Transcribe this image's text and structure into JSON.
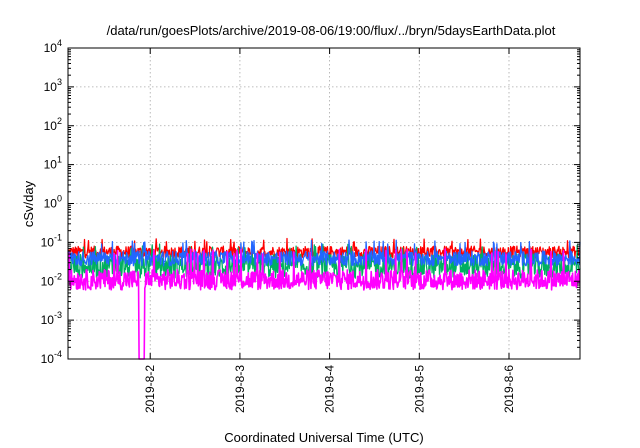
{
  "chart_data": {
    "type": "line",
    "title": "/data/run/goesPlots/archive/2019-08-06/19:00/flux/../bryn/5daysEarthData.plot",
    "xlabel": "Coordinated Universal Time (UTC)",
    "ylabel": "cSv/day",
    "yscale": "log",
    "ylim": [
      0.0001,
      10000
    ],
    "xlim": [
      "2019-08-01T02:00",
      "2019-08-06T19:00"
    ],
    "grid": true,
    "legend": "none",
    "y_ticks": [
      {
        "base": "10",
        "exp": "-4",
        "value": 0.0001
      },
      {
        "base": "10",
        "exp": "-3",
        "value": 0.001
      },
      {
        "base": "10",
        "exp": "-2",
        "value": 0.01
      },
      {
        "base": "10",
        "exp": "-1",
        "value": 0.1
      },
      {
        "base": "10",
        "exp": "0",
        "value": 1
      },
      {
        "base": "10",
        "exp": "1",
        "value": 10
      },
      {
        "base": "10",
        "exp": "2",
        "value": 100
      },
      {
        "base": "10",
        "exp": "3",
        "value": 1000
      },
      {
        "base": "10",
        "exp": "4",
        "value": 10000
      }
    ],
    "x_ticks": [
      {
        "label": "2019-8-2",
        "value": "2019-08-02T00:00"
      },
      {
        "label": "2019-8-3",
        "value": "2019-08-03T00:00"
      },
      {
        "label": "2019-8-4",
        "value": "2019-08-04T00:00"
      },
      {
        "label": "2019-8-5",
        "value": "2019-08-05T00:00"
      },
      {
        "label": "2019-8-6",
        "value": "2019-08-06T00:00"
      }
    ],
    "series": [
      {
        "color": "#ff0000",
        "band": [
          0.04,
          0.08
        ],
        "spike_max": 0.1
      },
      {
        "color": "#00b060",
        "band": [
          0.012,
          0.05
        ],
        "spike_max": 0.07
      },
      {
        "color": "#2266ff",
        "band": [
          0.025,
          0.06
        ],
        "spike_max": 0.09
      },
      {
        "color": "#ff00ff",
        "band": [
          0.006,
          0.02
        ],
        "spike_max": 0.05,
        "dropout": {
          "from": "2019-08-01T21:00",
          "to": "2019-08-01T22:30",
          "to_value": 0.0001
        }
      }
    ]
  }
}
